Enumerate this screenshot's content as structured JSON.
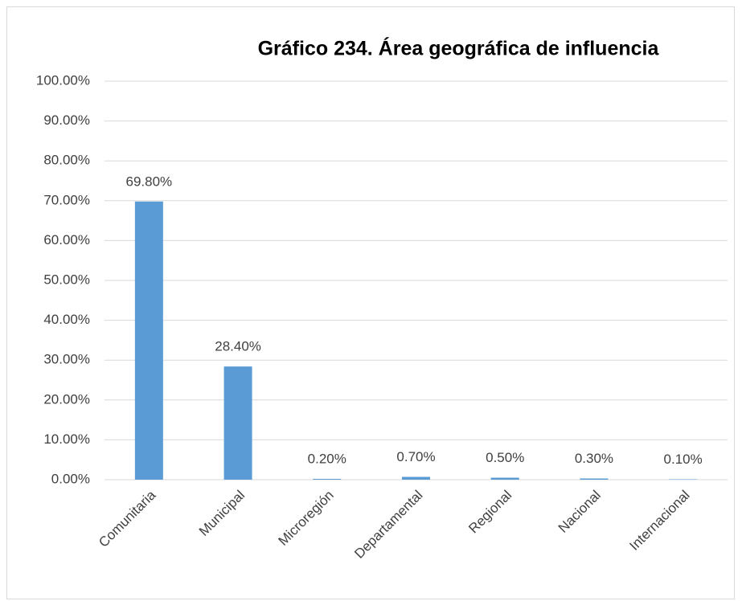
{
  "chart_data": {
    "type": "bar",
    "title": "Gráfico 234. Área geográfica de influencia",
    "categories": [
      "Comunitaria",
      "Municipal",
      "Microregión",
      "Departamental",
      "Regional",
      "Nacional",
      "Internacional"
    ],
    "values": [
      69.8,
      28.4,
      0.2,
      0.7,
      0.5,
      0.3,
      0.1
    ],
    "value_labels": [
      "69.80%",
      "28.40%",
      "0.20%",
      "0.70%",
      "0.50%",
      "0.30%",
      "0.10%"
    ],
    "color": "#5b9bd5",
    "ylim": [
      0,
      100
    ],
    "yticks": [
      {
        "value": 0,
        "label": "0.00%"
      },
      {
        "value": 10,
        "label": "10.00%"
      },
      {
        "value": 20,
        "label": "20.00%"
      },
      {
        "value": 30,
        "label": "30.00%"
      },
      {
        "value": 40,
        "label": "40.00%"
      },
      {
        "value": 50,
        "label": "50.00%"
      },
      {
        "value": 60,
        "label": "60.00%"
      },
      {
        "value": 70,
        "label": "70.00%"
      },
      {
        "value": 80,
        "label": "80.00%"
      },
      {
        "value": 90,
        "label": "90.00%"
      },
      {
        "value": 100,
        "label": "100.00%"
      }
    ],
    "grid": true
  }
}
